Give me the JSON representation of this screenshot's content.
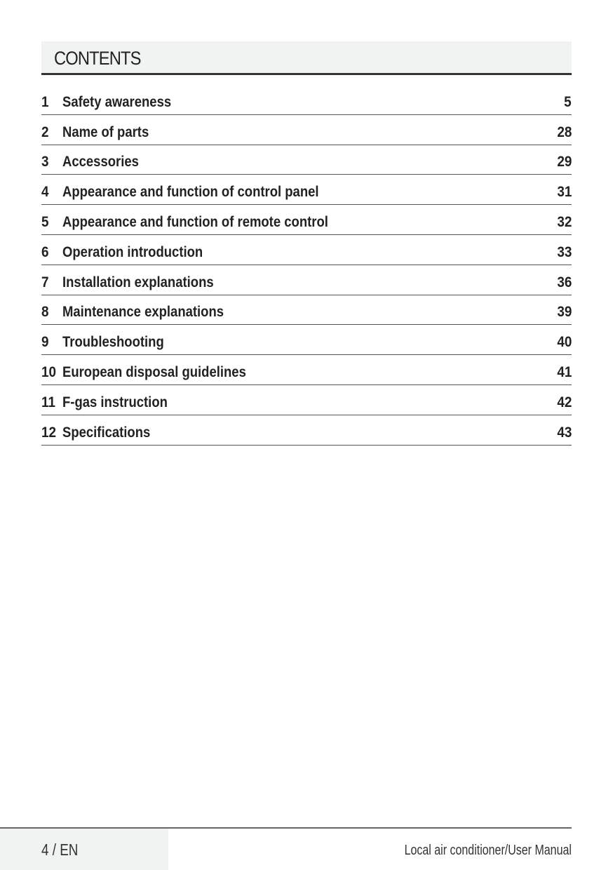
{
  "header": {
    "title": "CONTENTS"
  },
  "toc": [
    {
      "num": "1",
      "title": "Safety awareness",
      "page": "5"
    },
    {
      "num": "2",
      "title": "Name of parts",
      "page": "28"
    },
    {
      "num": "3",
      "title": "Accessories",
      "page": "29"
    },
    {
      "num": "4",
      "title": "Appearance and function of control panel",
      "page": "31"
    },
    {
      "num": "5",
      "title": "Appearance and function of remote control",
      "page": "32"
    },
    {
      "num": "6",
      "title": "Operation introduction",
      "page": "33"
    },
    {
      "num": "7",
      "title": "Installation explanations",
      "page": "36"
    },
    {
      "num": "8",
      "title": "Maintenance explanations",
      "page": "39"
    },
    {
      "num": "9",
      "title": "Troubleshooting",
      "page": "40"
    },
    {
      "num": "10",
      "title": "European disposal guidelines",
      "page": "41"
    },
    {
      "num": "11",
      "title": "F-gas instruction",
      "page": "42"
    },
    {
      "num": "12",
      "title": "Specifications",
      "page": "43"
    }
  ],
  "footer": {
    "page_label": "4 / EN",
    "doc_title": "Local air conditioner/User Manual"
  }
}
